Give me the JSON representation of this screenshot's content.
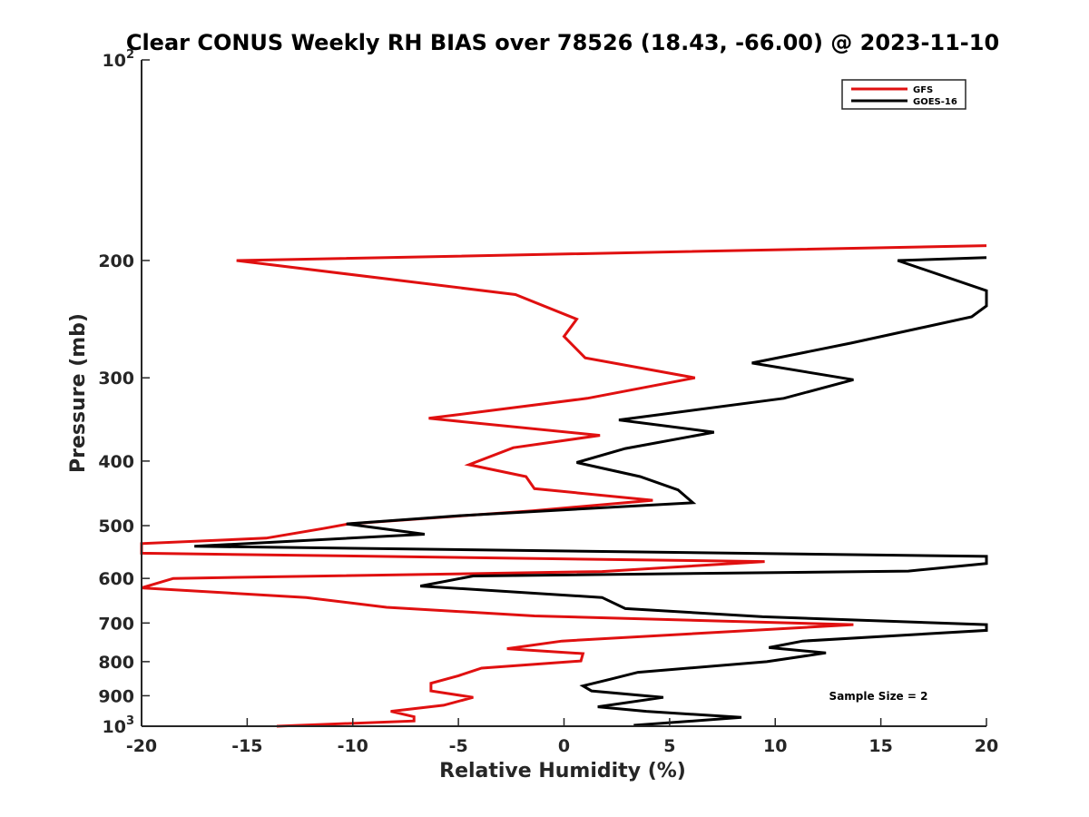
{
  "chart_data": {
    "type": "line",
    "title": "Clear CONUS Weekly RH BIAS over 78526 (18.43, -66.00) @ 2023-11-10",
    "xlabel": "Relative Humidity (%)",
    "ylabel": "Pressure (mb)",
    "xlim": [
      -20,
      20
    ],
    "ylim": [
      100,
      1000
    ],
    "yscale": "log",
    "yreversed": true,
    "xticks": [
      -20,
      -15,
      -10,
      -5,
      0,
      5,
      10,
      15,
      20
    ],
    "xtick_labels": [
      "-20",
      "-15",
      "-10",
      "-5",
      "0",
      "5",
      "10",
      "15",
      "20"
    ],
    "yticks": [
      {
        "value": 100,
        "label": "10",
        "exp": "2"
      },
      {
        "value": 200,
        "label": "200"
      },
      {
        "value": 300,
        "label": "300"
      },
      {
        "value": 400,
        "label": "400"
      },
      {
        "value": 500,
        "label": "500"
      },
      {
        "value": 600,
        "label": "600"
      },
      {
        "value": 700,
        "label": "700"
      },
      {
        "value": 800,
        "label": "800"
      },
      {
        "value": 900,
        "label": "900"
      },
      {
        "value": 1000,
        "label": "10",
        "exp": "3"
      }
    ],
    "grid": false,
    "legend_position": "top-right",
    "annotation": "Sample Size = 2",
    "series": [
      {
        "name": "GFS",
        "color": "#e01010",
        "points": [
          [
            20.0,
            190
          ],
          [
            -15.5,
            200
          ],
          [
            -2.3,
            225
          ],
          [
            0.6,
            245
          ],
          [
            0.0,
            260
          ],
          [
            1.0,
            280
          ],
          [
            6.2,
            300
          ],
          [
            1.1,
            322
          ],
          [
            -6.4,
            345
          ],
          [
            1.7,
            366
          ],
          [
            -2.4,
            382
          ],
          [
            -4.5,
            405
          ],
          [
            -1.8,
            422
          ],
          [
            -1.4,
            440
          ],
          [
            4.2,
            458
          ],
          [
            -1.5,
            475
          ],
          [
            -10.2,
            497
          ],
          [
            -11.4,
            505
          ],
          [
            -14.1,
            522
          ],
          [
            -20.0,
            532
          ],
          [
            -20.0,
            550
          ],
          [
            9.5,
            566
          ],
          [
            1.8,
            586
          ],
          [
            -18.5,
            600
          ],
          [
            -20.0,
            620
          ],
          [
            -12.2,
            641
          ],
          [
            -8.4,
            663
          ],
          [
            -1.4,
            683
          ],
          [
            13.7,
            704
          ],
          [
            -0.1,
            745
          ],
          [
            -2.7,
            765
          ],
          [
            0.9,
            778
          ],
          [
            0.8,
            798
          ],
          [
            -3.9,
            818
          ],
          [
            -5.0,
            840
          ],
          [
            -6.3,
            862
          ],
          [
            -6.3,
            885
          ],
          [
            -4.3,
            905
          ],
          [
            -5.7,
            930
          ],
          [
            -8.2,
            950
          ],
          [
            -7.1,
            968
          ],
          [
            -7.1,
            982
          ],
          [
            -13.6,
            1000
          ]
        ]
      },
      {
        "name": "GOES-16",
        "color": "#000000",
        "points": [
          [
            20.0,
            198
          ],
          [
            15.8,
            200
          ],
          [
            20.0,
            222
          ],
          [
            20.0,
            234
          ],
          [
            19.3,
            243
          ],
          [
            13.6,
            266
          ],
          [
            8.9,
            285
          ],
          [
            13.7,
            302
          ],
          [
            10.4,
            322
          ],
          [
            2.6,
            347
          ],
          [
            7.1,
            362
          ],
          [
            2.9,
            383
          ],
          [
            0.6,
            402
          ],
          [
            3.6,
            422
          ],
          [
            5.4,
            442
          ],
          [
            6.1,
            462
          ],
          [
            -4.9,
            483
          ],
          [
            -10.3,
            497
          ],
          [
            -6.6,
            515
          ],
          [
            -17.5,
            537
          ],
          [
            20.0,
            556
          ],
          [
            20.0,
            570
          ],
          [
            16.3,
            585
          ],
          [
            -4.3,
            595
          ],
          [
            -6.8,
            616
          ],
          [
            1.8,
            641
          ],
          [
            2.9,
            666
          ],
          [
            9.4,
            685
          ],
          [
            20.0,
            704
          ],
          [
            20.0,
            718
          ],
          [
            11.3,
            745
          ],
          [
            9.7,
            762
          ],
          [
            12.4,
            776
          ],
          [
            9.6,
            800
          ],
          [
            3.5,
            830
          ],
          [
            2.2,
            850
          ],
          [
            0.9,
            870
          ],
          [
            1.3,
            885
          ],
          [
            4.7,
            905
          ],
          [
            1.6,
            935
          ],
          [
            3.9,
            950
          ],
          [
            8.4,
            970
          ],
          [
            3.3,
            997
          ]
        ]
      }
    ]
  }
}
